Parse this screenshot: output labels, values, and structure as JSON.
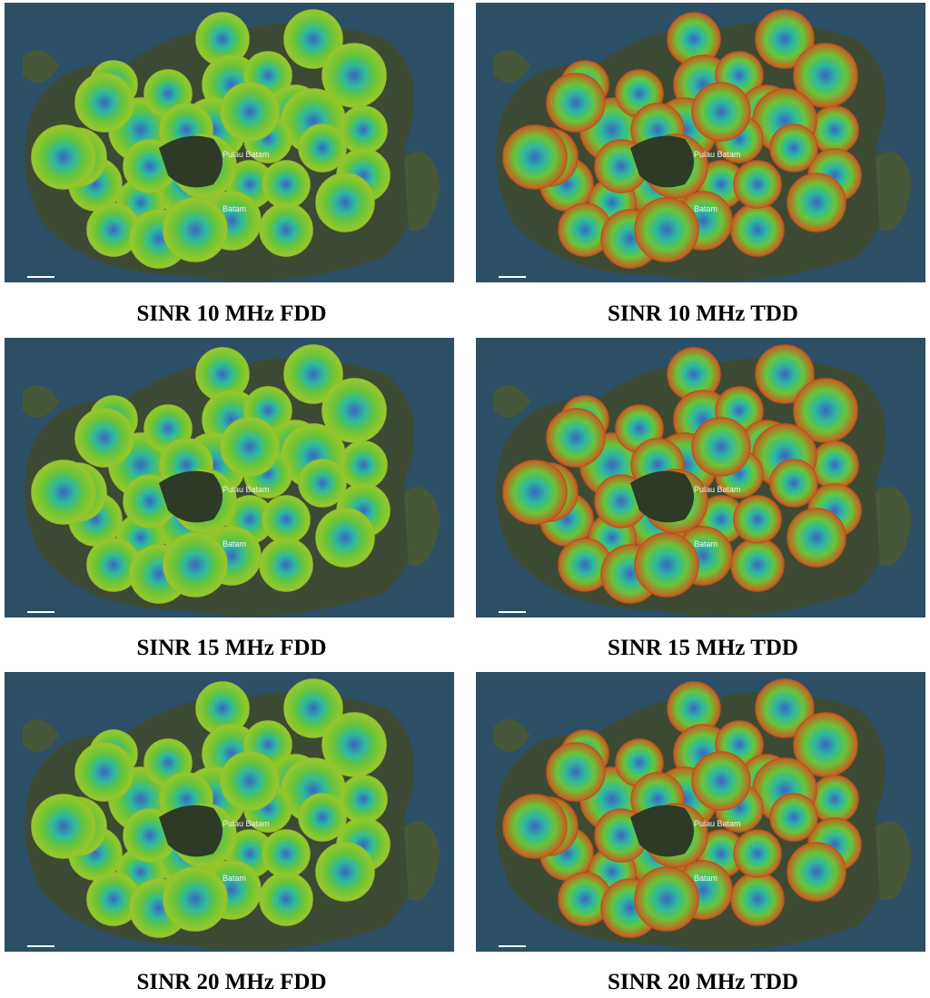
{
  "panels": [
    {
      "caption": "SINR 10 MHz FDD",
      "mode": "FDD"
    },
    {
      "caption": "SINR 10 MHz TDD",
      "mode": "TDD"
    },
    {
      "caption": "SINR 15 MHz FDD",
      "mode": "FDD"
    },
    {
      "caption": "SINR 15 MHz TDD",
      "mode": "TDD"
    },
    {
      "caption": "SINR 20 MHz FDD",
      "mode": "FDD"
    },
    {
      "caption": "SINR 20 MHz TDD",
      "mode": "TDD"
    }
  ],
  "map": {
    "labels": [
      "Batam",
      "Pulau Batam"
    ]
  }
}
